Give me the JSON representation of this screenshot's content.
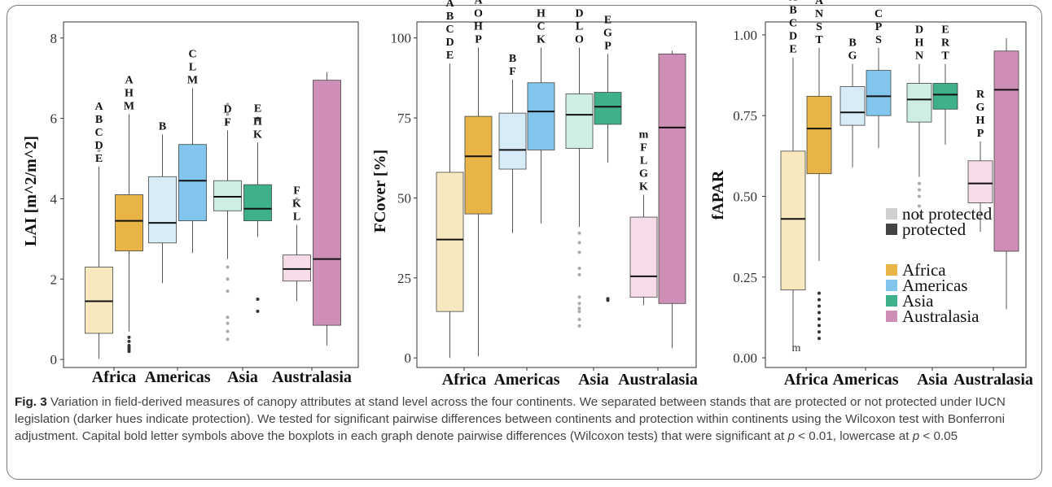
{
  "caption": {
    "label": "Fig. 3",
    "p1": " Variation in field-derived measures of canopy attributes at stand level across the four continents. We separated between stands that are protected or not protected under IUCN legislation (darker hues indicate protection). We tested for significant pairwise differences between continents and protection within continents using the Wilcoxon test with Bonferroni adjustment. Capital bold letter symbols above the boxplots in each graph denote pairwise differences (Wilcoxon tests) that were significant at ",
    "p_a": "p",
    "p2": " < 0.01, lowercase at ",
    "p_b": "p",
    "p3": " < 0.05"
  },
  "legend": {
    "protection": [
      "not protected",
      "protected"
    ],
    "continents": [
      "Africa",
      "Americas",
      "Asia",
      "Australasia"
    ]
  },
  "colors": {
    "not_protected": [
      "#f8e8c0",
      "#d8ecf8",
      "#cfeee3",
      "#f6dbe8"
    ],
    "protected": [
      "#e8b445",
      "#82c6ee",
      "#3eb08b",
      "#cf8eb5"
    ],
    "legend_not_protected": "#d0d0d0",
    "legend_protected": "#444444"
  },
  "chart_data": [
    {
      "type": "box",
      "ylabel": "LAI [m^2/m^2]",
      "categories": [
        "Africa",
        "Americas",
        "Asia",
        "Australasia"
      ],
      "ylim": [
        -0.2,
        8.4
      ],
      "yticks": [
        0,
        2,
        4,
        6,
        8
      ],
      "ytick_labels": [
        "0",
        "2",
        "4",
        "6",
        "8"
      ],
      "boxes": [
        {
          "cat": "Africa",
          "protected": false,
          "lw": 0.02,
          "q1": 0.65,
          "med": 1.45,
          "q3": 2.3,
          "uw": 4.8,
          "outliers": [
            5.2
          ],
          "letters": "A B C D E"
        },
        {
          "cat": "Africa",
          "protected": true,
          "lw": 0.7,
          "q1": 2.7,
          "med": 3.45,
          "q3": 4.1,
          "uw": 6.1,
          "outliers": [
            0.2,
            0.25,
            0.3,
            0.35,
            0.45,
            0.55
          ],
          "letters": "A H M"
        },
        {
          "cat": "Americas",
          "protected": false,
          "lw": 1.9,
          "q1": 2.9,
          "med": 3.4,
          "q3": 4.55,
          "uw": 5.6,
          "outliers": [],
          "letters": "B"
        },
        {
          "cat": "Americas",
          "protected": true,
          "lw": 2.65,
          "q1": 3.45,
          "med": 4.45,
          "q3": 5.35,
          "uw": 6.75,
          "outliers": [],
          "letters": "C L M"
        },
        {
          "cat": "Asia",
          "protected": false,
          "lw": 2.5,
          "q1": 3.7,
          "med": 4.05,
          "q3": 4.45,
          "uw": 5.7,
          "outliers": [
            0.5,
            0.7,
            0.9,
            1.05,
            1.7,
            2.0,
            2.3,
            5.9,
            6.1,
            6.35
          ],
          "letters": "D F"
        },
        {
          "cat": "Asia",
          "protected": true,
          "lw": 3.05,
          "q1": 3.45,
          "med": 3.75,
          "q3": 4.35,
          "uw": 5.4,
          "outliers": [
            1.2,
            1.5,
            6.0
          ],
          "letters": "E H K"
        },
        {
          "cat": "Australasia",
          "protected": false,
          "lw": 1.45,
          "q1": 1.95,
          "med": 2.25,
          "q3": 2.6,
          "uw": 3.35,
          "outliers": [
            4.0
          ],
          "letters": "F K L"
        },
        {
          "cat": "Australasia",
          "protected": true,
          "lw": 0.35,
          "q1": 0.85,
          "med": 2.5,
          "q3": 6.95,
          "uw": 7.15,
          "outliers": [],
          "letters": ""
        }
      ]
    },
    {
      "type": "box",
      "ylabel": "FCover [%]",
      "categories": [
        "Africa",
        "Americas",
        "Asia",
        "Australasia"
      ],
      "ylim": [
        -3,
        105
      ],
      "yticks": [
        0,
        25,
        50,
        75,
        100
      ],
      "ytick_labels": [
        "0",
        "25",
        "50",
        "75",
        "100"
      ],
      "boxes": [
        {
          "cat": "Africa",
          "protected": false,
          "lw": 0,
          "q1": 14.5,
          "med": 37,
          "q3": 58,
          "uw": 92,
          "outliers": [],
          "letters": "A B C D E"
        },
        {
          "cat": "Africa",
          "protected": true,
          "lw": 0.5,
          "q1": 45,
          "med": 63,
          "q3": 75.5,
          "uw": 97,
          "outliers": [],
          "letters": "m A O H P"
        },
        {
          "cat": "Americas",
          "protected": false,
          "lw": 39,
          "q1": 59,
          "med": 65,
          "q3": 76.5,
          "uw": 87,
          "outliers": [],
          "letters": "B F"
        },
        {
          "cat": "Americas",
          "protected": true,
          "lw": 42,
          "q1": 65,
          "med": 77,
          "q3": 86,
          "uw": 97,
          "outliers": [],
          "letters": "H C K"
        },
        {
          "cat": "Asia",
          "protected": false,
          "lw": 41,
          "q1": 65.5,
          "med": 76,
          "q3": 82.5,
          "uw": 97,
          "outliers": [
            10,
            12,
            14.5,
            15.5,
            17,
            19,
            26,
            28,
            33,
            36,
            39
          ],
          "letters": "D L O"
        },
        {
          "cat": "Asia",
          "protected": true,
          "lw": 61,
          "q1": 73,
          "med": 78.5,
          "q3": 83,
          "uw": 95,
          "outliers": [
            18,
            18.5
          ],
          "letters": "E G P"
        },
        {
          "cat": "Australasia",
          "protected": false,
          "lw": 16.5,
          "q1": 19,
          "med": 25.5,
          "q3": 44,
          "uw": 51,
          "outliers": [],
          "letters": "m F L G K"
        },
        {
          "cat": "Australasia",
          "protected": true,
          "lw": 3,
          "q1": 17,
          "med": 72,
          "q3": 95,
          "uw": 96,
          "outliers": [],
          "letters": ""
        }
      ]
    },
    {
      "type": "box",
      "ylabel": "fAPAR",
      "categories": [
        "Africa",
        "Americas",
        "Asia",
        "Australasia"
      ],
      "ylim": [
        -0.03,
        1.04
      ],
      "yticks": [
        0,
        0.25,
        0.5,
        0.75,
        1.0
      ],
      "ytick_labels": [
        "0.00",
        "0.25",
        "0.50",
        "0.75",
        "1.00"
      ],
      "annotation": {
        "text": "m",
        "x_cat": "Africa",
        "y": 0.03
      },
      "boxes": [
        {
          "cat": "Africa",
          "protected": false,
          "lw": 0.02,
          "q1": 0.21,
          "med": 0.43,
          "q3": 0.64,
          "uw": 0.93,
          "outliers": [],
          "letters": "A B C D E"
        },
        {
          "cat": "Africa",
          "protected": true,
          "lw": 0.3,
          "q1": 0.57,
          "med": 0.71,
          "q3": 0.81,
          "uw": 0.96,
          "outliers": [
            0.06,
            0.08,
            0.1,
            0.12,
            0.14,
            0.16,
            0.18,
            0.2
          ],
          "letters": "A N S T"
        },
        {
          "cat": "Americas",
          "protected": false,
          "lw": 0.59,
          "q1": 0.72,
          "med": 0.76,
          "q3": 0.84,
          "uw": 0.91,
          "outliers": [],
          "letters": "B G"
        },
        {
          "cat": "Americas",
          "protected": true,
          "lw": 0.65,
          "q1": 0.75,
          "med": 0.81,
          "q3": 0.89,
          "uw": 0.96,
          "outliers": [],
          "letters": "C P S"
        },
        {
          "cat": "Asia",
          "protected": false,
          "lw": 0.56,
          "q1": 0.73,
          "med": 0.8,
          "q3": 0.85,
          "uw": 0.91,
          "outliers": [
            0.44,
            0.47,
            0.5,
            0.52,
            0.54
          ],
          "letters": "D H N"
        },
        {
          "cat": "Asia",
          "protected": true,
          "lw": 0.66,
          "q1": 0.77,
          "med": 0.815,
          "q3": 0.85,
          "uw": 0.91,
          "outliers": [],
          "letters": "E R T"
        },
        {
          "cat": "Australasia",
          "protected": false,
          "lw": 0.39,
          "q1": 0.48,
          "med": 0.54,
          "q3": 0.61,
          "uw": 0.67,
          "outliers": [],
          "letters": "R G H P"
        },
        {
          "cat": "Australasia",
          "protected": true,
          "lw": 0.15,
          "q1": 0.33,
          "med": 0.83,
          "q3": 0.95,
          "uw": 0.99,
          "outliers": [],
          "letters": ""
        }
      ]
    }
  ]
}
